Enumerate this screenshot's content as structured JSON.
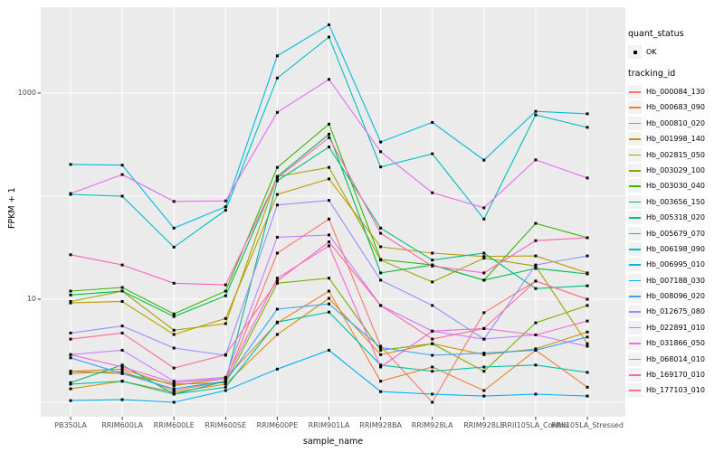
{
  "chart_data": {
    "type": "line",
    "title": "",
    "xlabel": "sample_name",
    "ylabel": "FPKM + 1",
    "y_scale": "log10",
    "ylim": [
      0.95,
      6800
    ],
    "grid": "major",
    "legend_position": "right",
    "panel_bg": "#EBEBEB",
    "grid_color": "#FFFFFF",
    "point_color": "#000000",
    "axis_text_color": "#4D4D4D",
    "yticks": [
      {
        "label": "1000",
        "value": 1000
      },
      {
        "label": "10",
        "value": 10
      }
    ],
    "gridlines_y_values": [
      1,
      10,
      100,
      1000
    ],
    "categories": [
      "PB350LA",
      "RRIM600LA",
      "RRIM600LE",
      "RRIM600SE",
      "RRIM600PE",
      "RRIM901LA",
      "RRIM928BA",
      "RRIM928LA",
      "RRIM928LE",
      "RRII105LA_Control",
      "RRII105LA_Stressed"
    ],
    "legend": {
      "quant_title": "quant_status",
      "ok_label": "OK",
      "tracking_title": "tracking_id"
    },
    "series": [
      {
        "name": "Hb_000084_130",
        "color": "#F8766D",
        "values": [
          1.9,
          2.0,
          1.3,
          1.6,
          28,
          60,
          3.5,
          1.0,
          7.4,
          15,
          10
        ]
      },
      {
        "name": "Hb_000683_090",
        "color": "#EA8331",
        "values": [
          2.0,
          2.1,
          1.45,
          1.7,
          5.9,
          12,
          1.6,
          2.2,
          1.3,
          3.2,
          1.4
        ]
      },
      {
        "name": "Hb_000810_020",
        "color": "#D89000",
        "values": [
          1.35,
          1.6,
          1.25,
          1.5,
          4.55,
          10.2,
          2.9,
          3.7,
          2.9,
          3.3,
          4.8
        ]
      },
      {
        "name": "Hb_001998_140",
        "color": "#C09B00",
        "values": [
          9.2,
          9.5,
          4.55,
          6.5,
          104,
          147,
          32.3,
          28,
          26,
          26.3,
          18
        ]
      },
      {
        "name": "Hb_002815_050",
        "color": "#A3A500",
        "values": [
          9.5,
          12,
          5.0,
          5.8,
          155,
          190,
          24,
          14.7,
          25,
          21,
          3.7
        ]
      },
      {
        "name": "Hb_003029_100",
        "color": "#7CAE00",
        "values": [
          2.0,
          1.9,
          1.5,
          1.55,
          14.3,
          16,
          3.2,
          3.7,
          2.0,
          5.9,
          8.7
        ]
      },
      {
        "name": "Hb_003030_040",
        "color": "#39B600",
        "values": [
          12,
          13,
          7.2,
          12,
          190,
          500,
          24.3,
          21.5,
          15.3,
          54.5,
          39.5
        ]
      },
      {
        "name": "Hb_003656_150",
        "color": "#00BB4E",
        "values": [
          11,
          12,
          6.8,
          10.8,
          155,
          400,
          18,
          21.5,
          15.3,
          19.9,
          17.6
        ]
      },
      {
        "name": "Hb_005318_020",
        "color": "#00BF7D",
        "values": [
          1.55,
          2.3,
          1.2,
          1.6,
          141,
          300,
          49,
          24,
          28,
          12.7,
          13.5
        ]
      },
      {
        "name": "Hb_005679_070",
        "color": "#00C1A3",
        "values": [
          1.5,
          1.6,
          1.2,
          1.4,
          6.0,
          7.5,
          2.3,
          2.0,
          2.2,
          2.3,
          1.95
        ]
      },
      {
        "name": "Hb_006198_090",
        "color": "#00BFC4",
        "values": [
          104,
          100,
          32,
          73,
          1400,
          3500,
          192,
          258,
          60,
          615,
          465
        ]
      },
      {
        "name": "Hb_006995_010",
        "color": "#00BAE0",
        "values": [
          203,
          200,
          49,
          79,
          2300,
          4600,
          335,
          520,
          224,
          665,
          630
        ]
      },
      {
        "name": "Hb_007188_030",
        "color": "#00B0F6",
        "values": [
          1.04,
          1.06,
          1.0,
          1.3,
          2.1,
          3.2,
          1.27,
          1.2,
          1.15,
          1.2,
          1.15
        ]
      },
      {
        "name": "Hb_008096_020",
        "color": "#35A2FF",
        "values": [
          2.7,
          1.9,
          1.35,
          1.6,
          8.0,
          9.0,
          3.4,
          2.86,
          3.0,
          3.2,
          4.3
        ]
      },
      {
        "name": "Hb_012675_080",
        "color": "#9590FF",
        "values": [
          4.7,
          5.5,
          3.36,
          2.86,
          82,
          91,
          15.3,
          8.7,
          4.1,
          21.5,
          26.3
        ]
      },
      {
        "name": "Hb_022891_010",
        "color": "#C77CFF",
        "values": [
          2.9,
          3.2,
          1.6,
          1.75,
          40,
          42,
          8.7,
          4.9,
          4.1,
          4.5,
          3.5
        ]
      },
      {
        "name": "Hb_031866_050",
        "color": "#E76BF3",
        "values": [
          106,
          162,
          89,
          90,
          650,
          1360,
          270,
          108,
          77,
          225,
          150
        ]
      },
      {
        "name": "Hb_068014_010",
        "color": "#FA62DB",
        "values": [
          2.9,
          2.2,
          1.55,
          1.7,
          16,
          33,
          2.2,
          4.9,
          5.2,
          4.5,
          6.15
        ]
      },
      {
        "name": "Hb_169170_010",
        "color": "#FF62BC",
        "values": [
          27,
          21.5,
          14.3,
          13.8,
          150,
          370,
          43.6,
          21,
          18,
          37,
          39.5
        ]
      },
      {
        "name": "Hb_177103_010",
        "color": "#FF6A98",
        "values": [
          4.1,
          4.7,
          2.15,
          2.9,
          15,
          36,
          8.7,
          4.1,
          5.2,
          15,
          10
        ]
      }
    ]
  }
}
